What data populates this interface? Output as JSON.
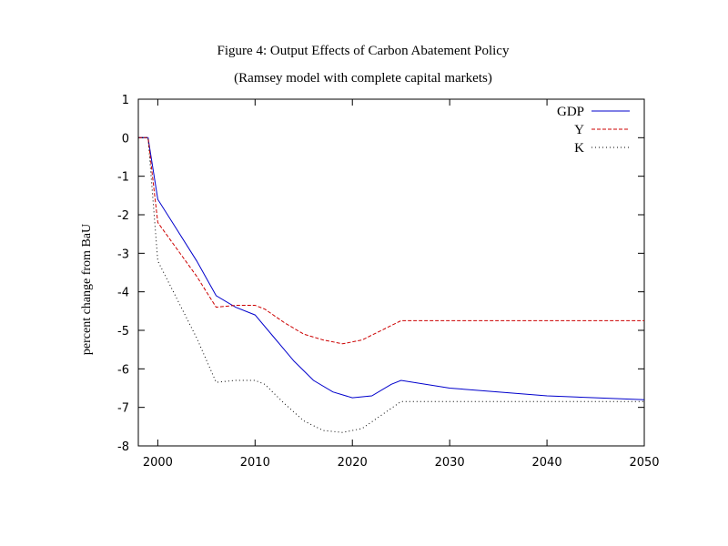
{
  "chart_data": {
    "type": "line",
    "title": "Figure 4: Output Effects of Carbon Abatement Policy",
    "subtitle": "(Ramsey model with complete capital markets)",
    "xlabel": "",
    "ylabel": "percent change from BaU",
    "xlim": [
      1998,
      2050
    ],
    "ylim": [
      -8,
      1
    ],
    "xticks": [
      2000,
      2010,
      2020,
      2030,
      2040,
      2050
    ],
    "yticks": [
      1,
      0,
      -1,
      -2,
      -3,
      -4,
      -5,
      -6,
      -7,
      -8
    ],
    "grid": false,
    "legend_position": "top-right",
    "series": [
      {
        "name": "GDP",
        "color": "#0000cc",
        "dash": "solid",
        "x": [
          1998,
          1999,
          2000,
          2002,
          2004,
          2006,
          2008,
          2010,
          2012,
          2014,
          2016,
          2018,
          2020,
          2022,
          2024,
          2025,
          2030,
          2035,
          2040,
          2045,
          2050
        ],
        "y": [
          0,
          0,
          -1.6,
          -2.4,
          -3.2,
          -4.1,
          -4.4,
          -4.6,
          -5.2,
          -5.8,
          -6.3,
          -6.6,
          -6.75,
          -6.7,
          -6.4,
          -6.3,
          -6.5,
          -6.6,
          -6.7,
          -6.75,
          -6.8
        ]
      },
      {
        "name": "Y",
        "color": "#cc0000",
        "dash": "dashed",
        "x": [
          1998,
          1999,
          2000,
          2002,
          2004,
          2006,
          2008,
          2010,
          2011,
          2013,
          2015,
          2017,
          2019,
          2021,
          2023,
          2025,
          2030,
          2035,
          2040,
          2045,
          2050
        ],
        "y": [
          0,
          0,
          -2.2,
          -2.9,
          -3.6,
          -4.4,
          -4.35,
          -4.35,
          -4.45,
          -4.8,
          -5.1,
          -5.25,
          -5.35,
          -5.25,
          -5.0,
          -4.75,
          -4.75,
          -4.75,
          -4.75,
          -4.75,
          -4.75
        ]
      },
      {
        "name": "K",
        "color": "#000000",
        "dash": "dotted",
        "x": [
          1998,
          1999,
          2000,
          2002,
          2004,
          2006,
          2008,
          2010,
          2011,
          2013,
          2015,
          2017,
          2019,
          2021,
          2023,
          2025,
          2030,
          2035,
          2040,
          2045,
          2050
        ],
        "y": [
          0,
          0,
          -3.2,
          -4.2,
          -5.2,
          -6.35,
          -6.3,
          -6.3,
          -6.4,
          -6.9,
          -7.35,
          -7.6,
          -7.65,
          -7.55,
          -7.2,
          -6.85,
          -6.85,
          -6.85,
          -6.85,
          -6.85,
          -6.85
        ]
      }
    ]
  }
}
